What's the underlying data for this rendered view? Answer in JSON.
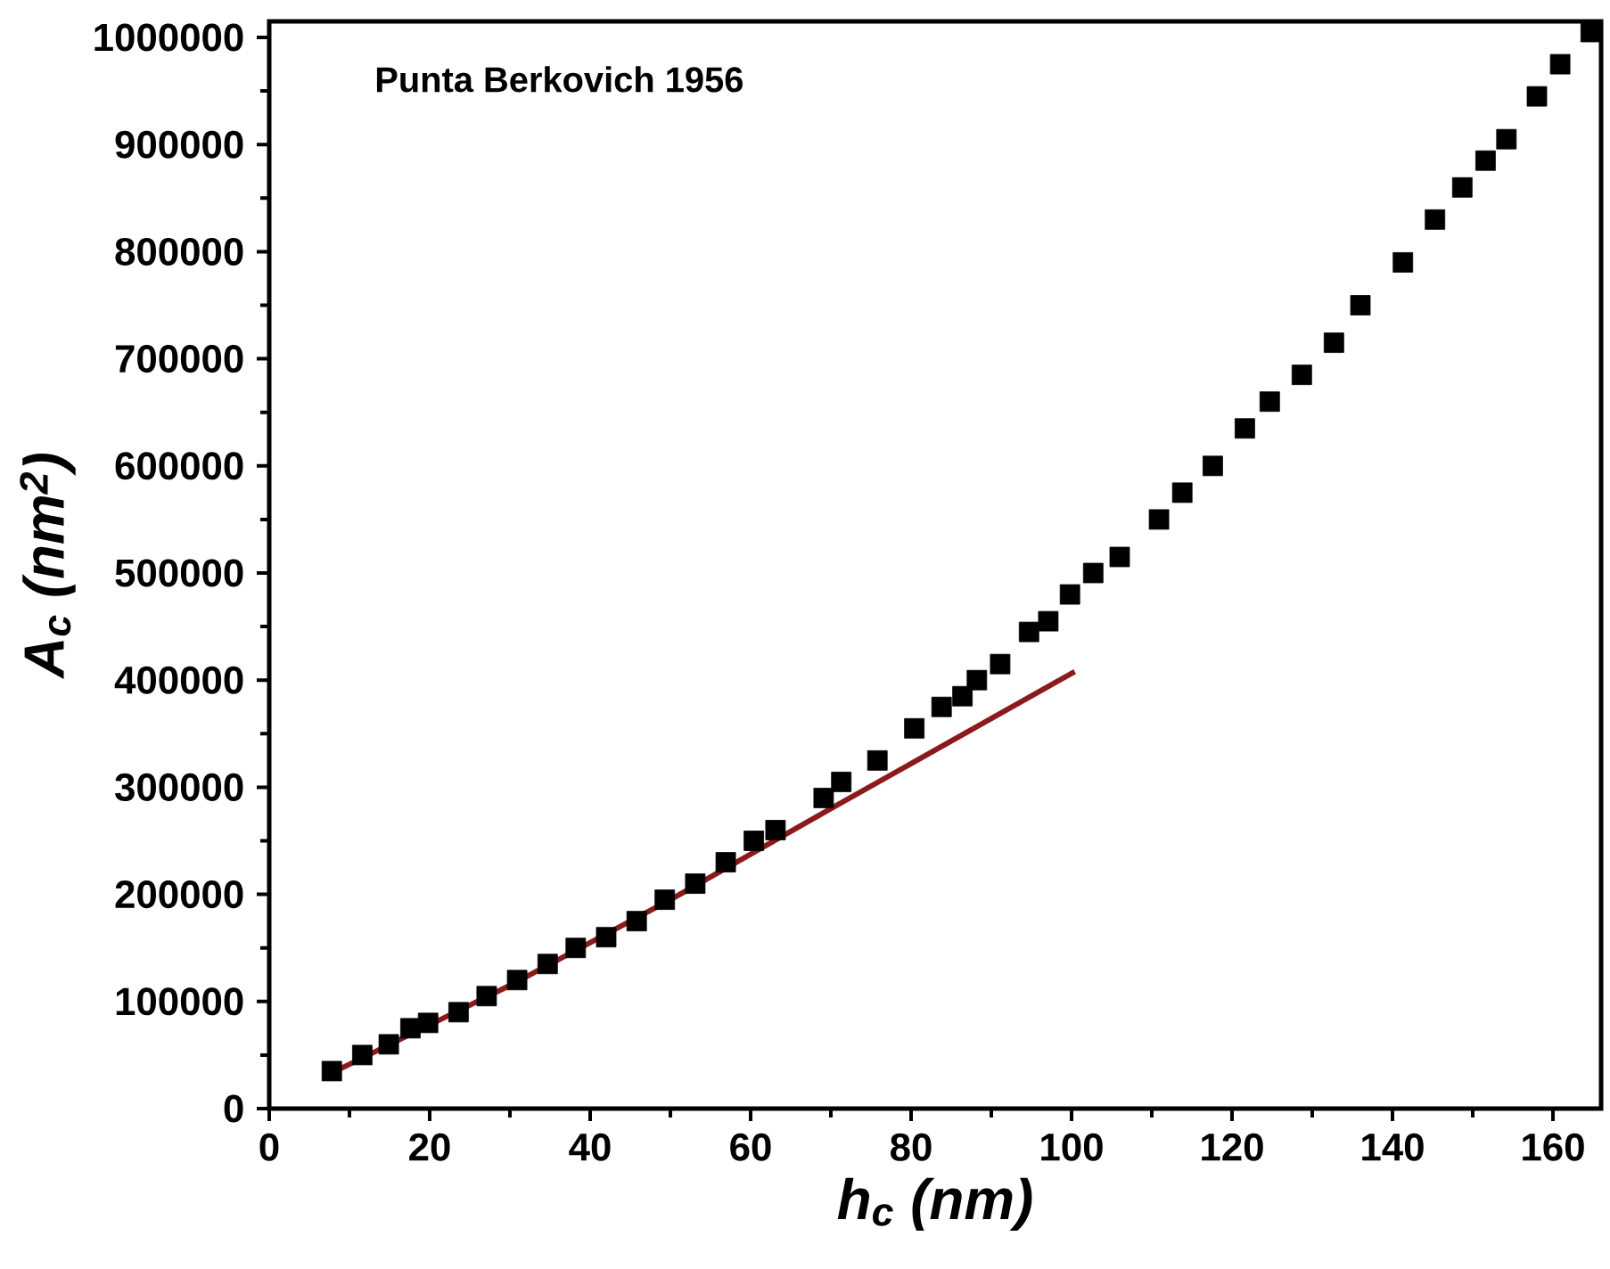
{
  "chart_data": {
    "type": "scatter",
    "xlabel": "h$_{c}$ (nm)",
    "ylabel": "A$_{c}$ (nm$^{2}$)",
    "annotations": [
      "Punta Berkovich 1956"
    ],
    "xlim": [
      0,
      166
    ],
    "ylim": [
      0,
      1015000
    ],
    "xticks": [
      0,
      20,
      40,
      60,
      80,
      100,
      120,
      140,
      160
    ],
    "yticks": [
      0,
      100000,
      200000,
      300000,
      400000,
      500000,
      600000,
      700000,
      800000,
      900000,
      1000000
    ],
    "grid": false,
    "series": [
      {
        "marker": "square",
        "color": "#000000",
        "x": [
          7.8,
          11.6,
          14.9,
          17.6,
          19.8,
          23.6,
          27.1,
          30.9,
          34.7,
          38.2,
          42.0,
          45.8,
          49.3,
          53.1,
          56.9,
          60.4,
          63.1,
          69.1,
          71.3,
          75.8,
          80.4,
          83.8,
          86.4,
          88.2,
          91.1,
          94.7,
          97.1,
          99.8,
          102.7,
          106.0,
          110.9,
          113.8,
          117.6,
          121.6,
          124.7,
          128.7,
          132.7,
          136.0,
          141.3,
          145.3,
          148.7,
          151.6,
          154.2,
          158.0,
          160.9,
          164.7
        ],
        "values": [
          35000,
          50000,
          60000,
          75000,
          80000,
          90000,
          105000,
          120000,
          135000,
          150000,
          160000,
          175000,
          195000,
          210000,
          230000,
          250000,
          260000,
          290000,
          305000,
          325000,
          355000,
          375000,
          385000,
          400000,
          415000,
          445000,
          455000,
          480000,
          500000,
          515000,
          550000,
          575000,
          600000,
          635000,
          660000,
          685000,
          715000,
          750000,
          790000,
          830000,
          860000,
          885000,
          905000,
          945000,
          975000,
          1005000
        ]
      },
      {
        "type": "line",
        "line_style": "solid",
        "color": "#8b1a1a",
        "x": [
          8,
          30,
          50,
          70,
          100.4
        ],
        "values": [
          34000,
          115000,
          195000,
          280000,
          408000
        ]
      }
    ]
  }
}
